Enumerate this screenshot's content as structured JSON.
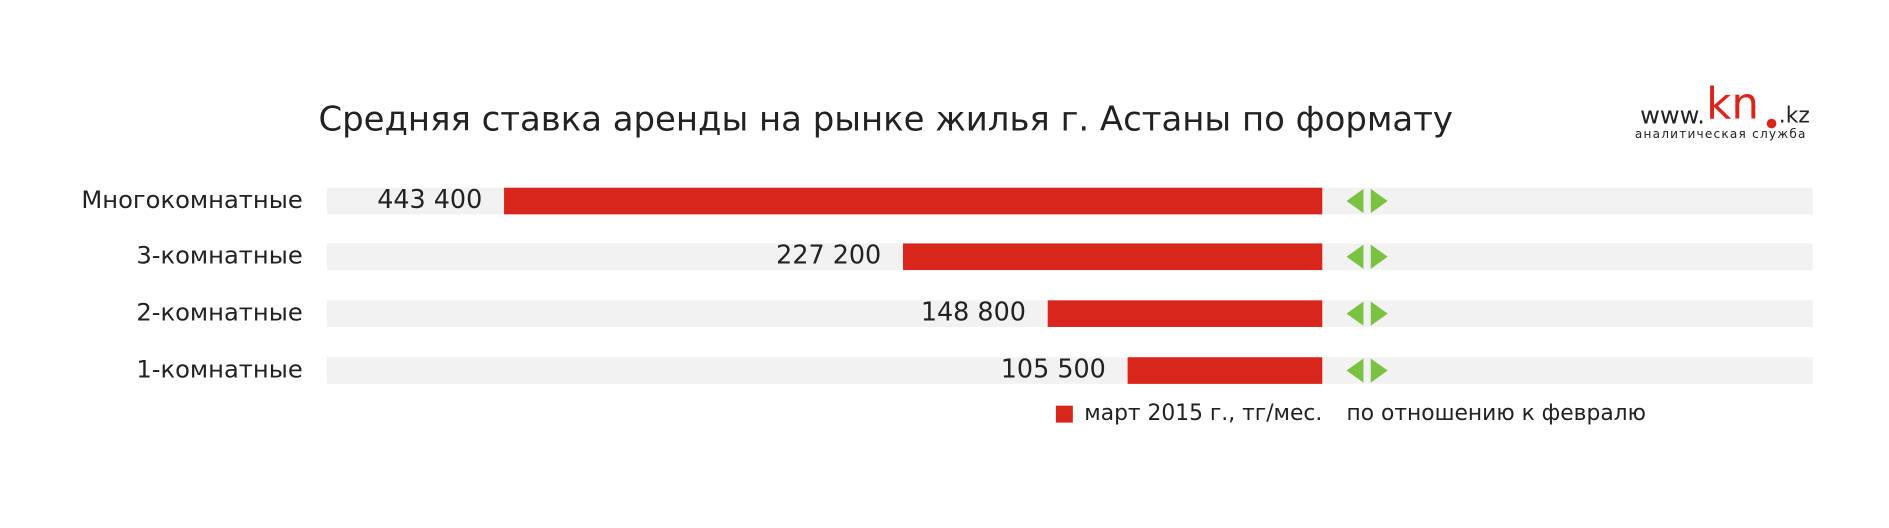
{
  "chart_data": {
    "type": "bar",
    "orientation": "horizontal",
    "title": "Средняя ставка аренды на рынке жилья г. Астаны по формату",
    "categories": [
      "Многокомнатные",
      "3-комнатные",
      "2-комнатные",
      "1-комнатные"
    ],
    "series": [
      {
        "name": "март 2015 г., тг/мес.",
        "color": "#d9261c",
        "values": [
          443400,
          227200,
          148800,
          105500
        ],
        "value_labels": [
          "443 400",
          "227 200",
          "148 800",
          "105 500"
        ]
      }
    ],
    "change_label": "по отношению к февралю",
    "xlim": [
      0,
      500000
    ],
    "logo": {
      "prefix": "www.",
      "brand": "kn",
      "suffix": ".kz",
      "tagline": "аналитическая служба"
    }
  }
}
